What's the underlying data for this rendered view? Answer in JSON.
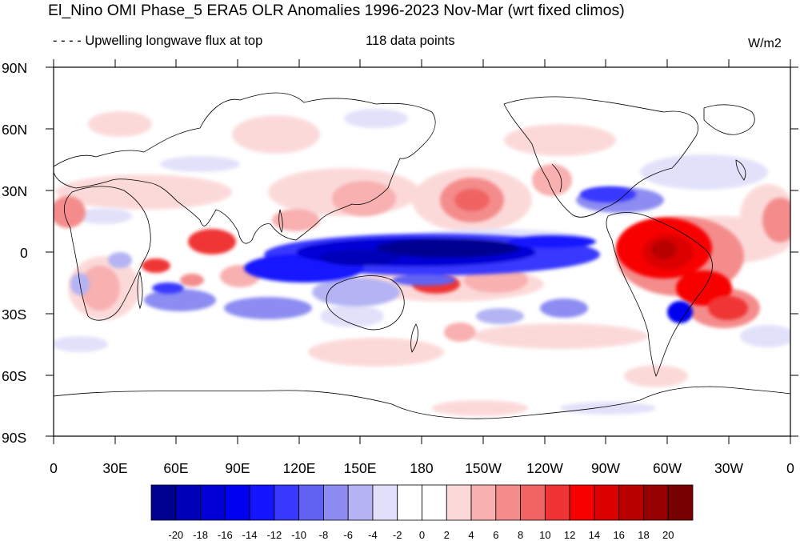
{
  "title": "El_Nino OMI Phase_5 ERA5 OLR Anomalies 1996-2023 Nov-Mar (wrt fixed climos)",
  "subtitle_left": "- - - - Upwelling longwave flux at top",
  "subtitle_count": "118 data points",
  "units": "W/m2",
  "lat_labels": [
    "90N",
    "60N",
    "30N",
    "0",
    "30S",
    "60S",
    "90S"
  ],
  "lon_labels": [
    "0",
    "30E",
    "60E",
    "90E",
    "120E",
    "150E",
    "180",
    "150W",
    "120W",
    "90W",
    "60W",
    "30W",
    "0"
  ],
  "colorbar": {
    "labels": [
      "-20",
      "-18",
      "-16",
      "-14",
      "-12",
      "-10",
      "-8",
      "-6",
      "-4",
      "-2",
      "0",
      "2",
      "4",
      "6",
      "8",
      "10",
      "12",
      "14",
      "16",
      "18",
      "20"
    ],
    "colors": [
      "#000090",
      "#0000b8",
      "#0000d6",
      "#0000f0",
      "#1414ff",
      "#3838ff",
      "#6262f2",
      "#8c8cf2",
      "#b4b4f4",
      "#e0e0fa",
      "#ffffff",
      "#ffffff",
      "#fcd8d8",
      "#f8b0b0",
      "#f48c8c",
      "#f06464",
      "#f03434",
      "#f80000",
      "#dc0000",
      "#b80000",
      "#960000",
      "#780000"
    ]
  }
}
